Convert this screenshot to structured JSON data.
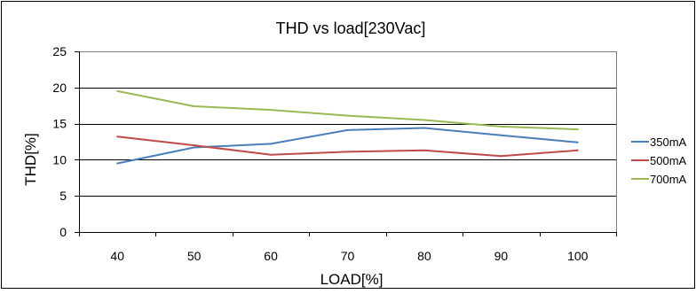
{
  "chart_data": {
    "type": "line",
    "title": "THD vs load[230Vac]",
    "xlabel": "LOAD[%]",
    "ylabel": "THD[%]",
    "categories": [
      "40",
      "50",
      "60",
      "70",
      "80",
      "90",
      "100"
    ],
    "yticks": [
      "0",
      "5",
      "10",
      "15",
      "20",
      "25"
    ],
    "ylim": [
      0,
      25
    ],
    "grid": "horizontal",
    "legend_position": "right",
    "series": [
      {
        "name": "350mA",
        "color": "#4a7ebb",
        "values": [
          9.5,
          11.7,
          12.2,
          14.1,
          14.4,
          13.4,
          12.4
        ]
      },
      {
        "name": "500mA",
        "color": "#be4b48",
        "values": [
          13.2,
          12.0,
          10.7,
          11.1,
          11.3,
          10.5,
          11.3
        ]
      },
      {
        "name": "700mA",
        "color": "#98b954",
        "values": [
          19.5,
          17.4,
          16.9,
          16.1,
          15.5,
          14.6,
          14.2
        ]
      }
    ]
  }
}
